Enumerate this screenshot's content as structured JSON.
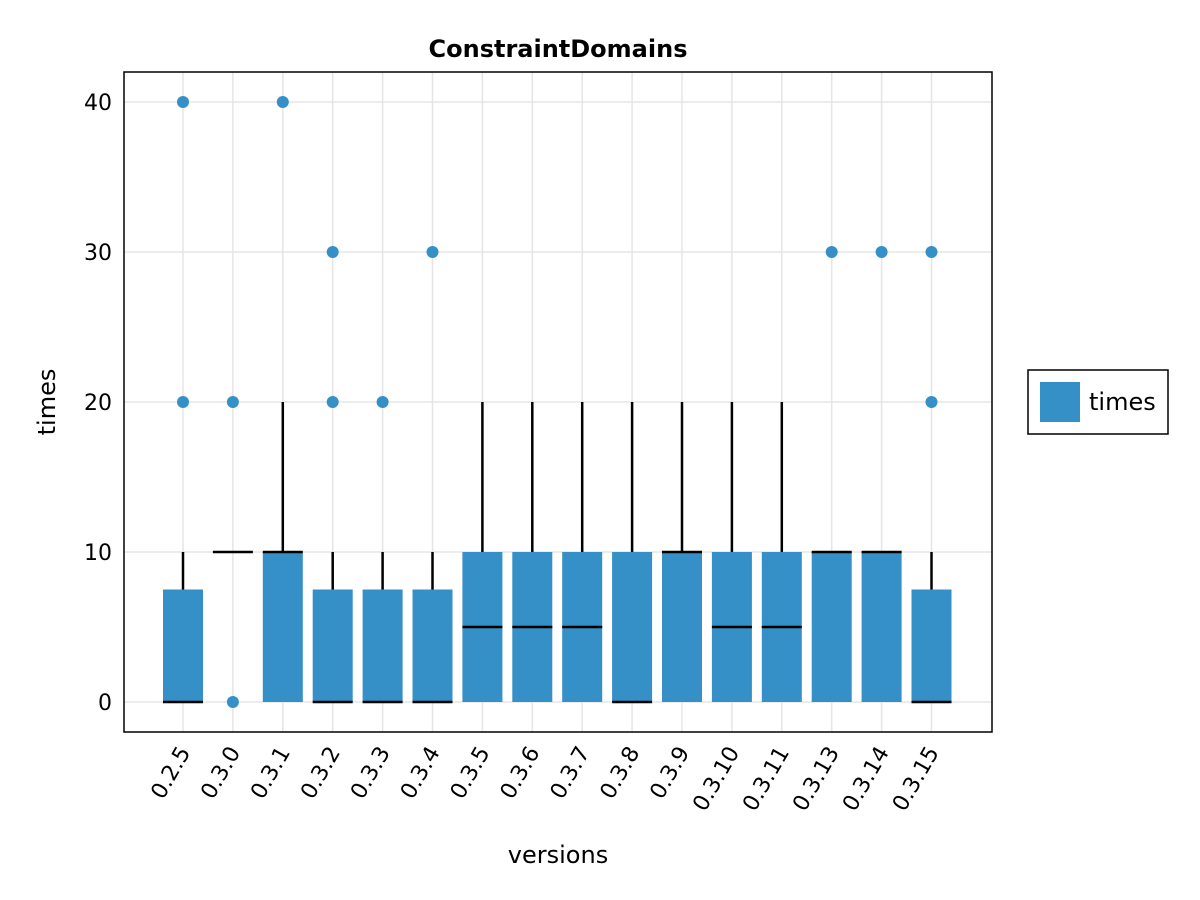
{
  "chart_data": {
    "type": "boxplot",
    "title": "ConstraintDomains",
    "xlabel": "versions",
    "ylabel": "times",
    "ylim": [
      -2,
      42
    ],
    "yticks": [
      0,
      10,
      20,
      30,
      40
    ],
    "grid": true,
    "legend": {
      "placement": "right",
      "entries": [
        "times"
      ]
    },
    "colors": {
      "box": "#3490C6",
      "outlier": "#3490C6",
      "median": "#000000",
      "whisker": "#000000",
      "grid": "#E5E5E5"
    },
    "categories": [
      "0.2.5",
      "0.3.0",
      "0.3.1",
      "0.3.2",
      "0.3.3",
      "0.3.4",
      "0.3.5",
      "0.3.6",
      "0.3.7",
      "0.3.8",
      "0.3.9",
      "0.3.10",
      "0.3.11",
      "0.3.13",
      "0.3.14",
      "0.3.15"
    ],
    "series": [
      {
        "name": "times",
        "boxes": [
          {
            "q1": 0,
            "median": 0,
            "q3": 7.5,
            "whisker_low": 0,
            "whisker_high": 10,
            "outliers": [
              20,
              40
            ]
          },
          {
            "q1": 10,
            "median": 10,
            "q3": 10,
            "whisker_low": 10,
            "whisker_high": 10,
            "outliers": [
              0,
              20
            ]
          },
          {
            "q1": 0,
            "median": 10,
            "q3": 10,
            "whisker_low": 0,
            "whisker_high": 20,
            "outliers": [
              40
            ]
          },
          {
            "q1": 0,
            "median": 0,
            "q3": 7.5,
            "whisker_low": 0,
            "whisker_high": 10,
            "outliers": [
              20,
              30
            ]
          },
          {
            "q1": 0,
            "median": 0,
            "q3": 7.5,
            "whisker_low": 0,
            "whisker_high": 10,
            "outliers": [
              20
            ]
          },
          {
            "q1": 0,
            "median": 0,
            "q3": 7.5,
            "whisker_low": 0,
            "whisker_high": 10,
            "outliers": [
              30
            ]
          },
          {
            "q1": 0,
            "median": 5,
            "q3": 10,
            "whisker_low": 0,
            "whisker_high": 20,
            "outliers": []
          },
          {
            "q1": 0,
            "median": 5,
            "q3": 10,
            "whisker_low": 0,
            "whisker_high": 20,
            "outliers": []
          },
          {
            "q1": 0,
            "median": 5,
            "q3": 10,
            "whisker_low": 0,
            "whisker_high": 20,
            "outliers": []
          },
          {
            "q1": 0,
            "median": 0,
            "q3": 10,
            "whisker_low": 0,
            "whisker_high": 20,
            "outliers": []
          },
          {
            "q1": 0,
            "median": 10,
            "q3": 10,
            "whisker_low": 0,
            "whisker_high": 20,
            "outliers": []
          },
          {
            "q1": 0,
            "median": 5,
            "q3": 10,
            "whisker_low": 0,
            "whisker_high": 20,
            "outliers": []
          },
          {
            "q1": 0,
            "median": 5,
            "q3": 10,
            "whisker_low": 0,
            "whisker_high": 20,
            "outliers": []
          },
          {
            "q1": 0,
            "median": 10,
            "q3": 10,
            "whisker_low": 0,
            "whisker_high": 10,
            "outliers": [
              30
            ]
          },
          {
            "q1": 0,
            "median": 10,
            "q3": 10,
            "whisker_low": 0,
            "whisker_high": 10,
            "outliers": [
              30
            ]
          },
          {
            "q1": 0,
            "median": 0,
            "q3": 7.5,
            "whisker_low": 0,
            "whisker_high": 10,
            "outliers": [
              20,
              30
            ]
          }
        ]
      }
    ]
  }
}
